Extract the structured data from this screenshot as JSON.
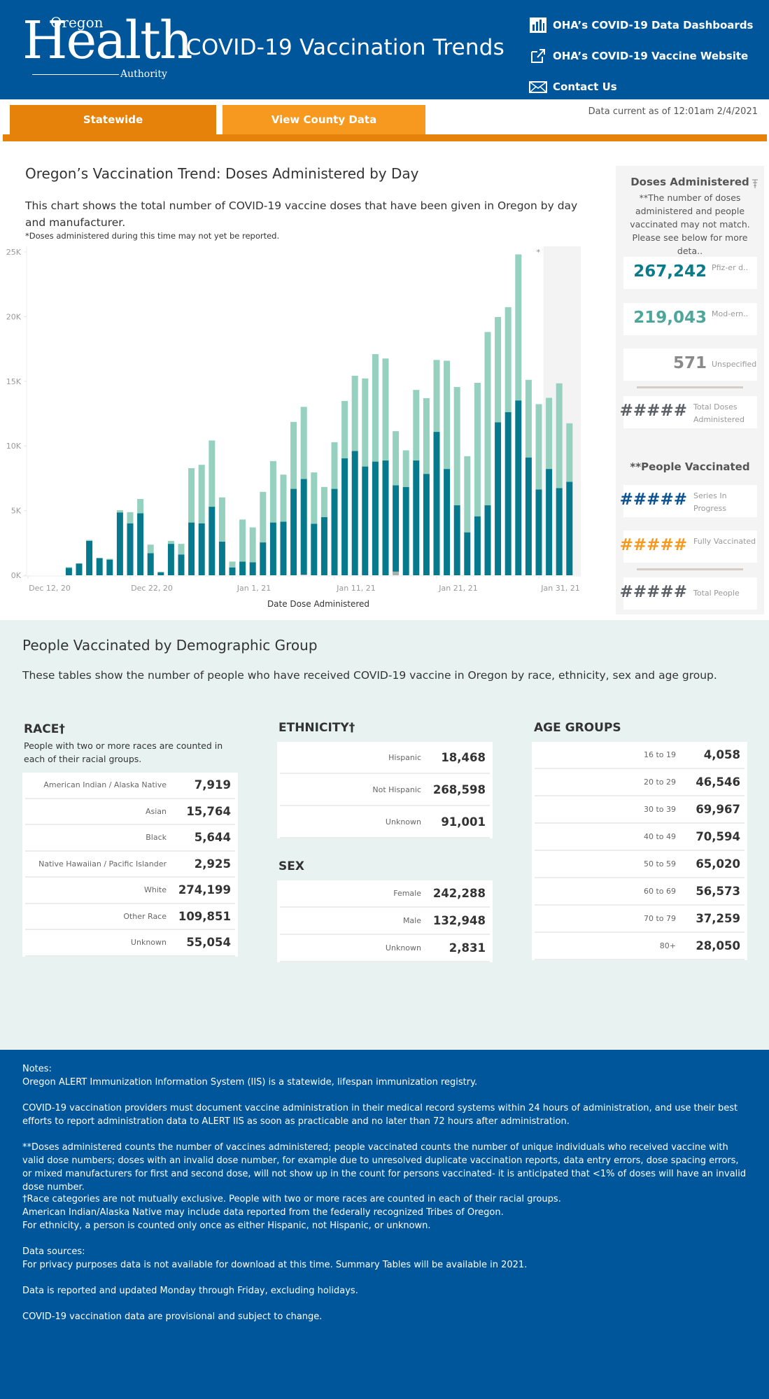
{
  "header": {
    "logo": {
      "big": "Health",
      "top": "Oregon",
      "bottom": "Authority"
    },
    "title": "COVID-19 Vaccination Trends",
    "links": [
      {
        "label": "OHA’s COVID-19 Data Dashboards",
        "icon": "bar-chart-icon"
      },
      {
        "label": "OHA’s COVID-19 Vaccine Website",
        "icon": "external-link-icon"
      },
      {
        "label": "Contact Us",
        "icon": "envelope-icon"
      }
    ]
  },
  "nav": {
    "tabs": [
      {
        "label": "Statewide",
        "active": true
      },
      {
        "label": "View County Data",
        "active": false
      }
    ],
    "data_current": "Data current as of 12:01am 2/4/2021"
  },
  "trend": {
    "title": "Oregon’s Vaccination Trend: Doses Administered by Day",
    "description": "This chart shows the total number of COVID-19 vaccine doses that have been given in Oregon by day and manufacturer.",
    "note": "*Doses administered during this time may not yet be reported.",
    "asterisk": "*"
  },
  "chart_data": {
    "type": "bar",
    "stacked": true,
    "title": "Oregon’s Vaccination Trend: Doses Administered by Day",
    "xlabel": "Date Dose Administered",
    "ylabel": "",
    "ylim": [
      0,
      25000
    ],
    "y_ticks": [
      0,
      5000,
      10000,
      15000,
      20000,
      25000
    ],
    "y_tick_labels": [
      "0K",
      "5K",
      "10K",
      "15K",
      "20K",
      "25K"
    ],
    "x_tick_labels": [
      "Dec 12, 20",
      "Dec 22, 20",
      "Jan 1, 21",
      "Jan 11, 21",
      "Jan 21, 21",
      "Jan 31, 21"
    ],
    "x_tick_dates": [
      "2020-12-12",
      "2020-12-22",
      "2021-01-01",
      "2021-01-11",
      "2021-01-21",
      "2021-01-31"
    ],
    "x_start": "2020-12-12",
    "x_end": "2021-02-03",
    "shaded_region_start": "2021-02-01",
    "shaded_region_note": "*",
    "grid": false,
    "categories": [
      "2020-12-16",
      "2020-12-17",
      "2020-12-18",
      "2020-12-19",
      "2020-12-20",
      "2020-12-21",
      "2020-12-22",
      "2020-12-23",
      "2020-12-24",
      "2020-12-25",
      "2020-12-26",
      "2020-12-27",
      "2020-12-28",
      "2020-12-29",
      "2020-12-30",
      "2020-12-31",
      "2021-01-01",
      "2021-01-02",
      "2021-01-03",
      "2021-01-04",
      "2021-01-05",
      "2021-01-06",
      "2021-01-07",
      "2021-01-08",
      "2021-01-09",
      "2021-01-10",
      "2021-01-11",
      "2021-01-12",
      "2021-01-13",
      "2021-01-14",
      "2021-01-15",
      "2021-01-16",
      "2021-01-17",
      "2021-01-18",
      "2021-01-19",
      "2021-01-20",
      "2021-01-21",
      "2021-01-22",
      "2021-01-23",
      "2021-01-24",
      "2021-01-25",
      "2021-01-26",
      "2021-01-27",
      "2021-01-28",
      "2021-01-29",
      "2021-01-30",
      "2021-01-31",
      "2021-02-01",
      "2021-02-02",
      "2021-02-03"
    ],
    "series": [
      {
        "name": "Pfizer",
        "color": "#067a8c",
        "values": [
          570,
          910,
          2660,
          1330,
          1210,
          4860,
          4020,
          4800,
          1710,
          230,
          2430,
          1610,
          4080,
          4020,
          5300,
          2600,
          610,
          1060,
          1010,
          2540,
          4080,
          4140,
          6680,
          7400,
          3990,
          4500,
          6680,
          9050,
          9610,
          8410,
          8790,
          8880,
          6680,
          6830,
          8880,
          7840,
          11090,
          8220,
          5410,
          3320,
          4560,
          5410,
          11830,
          12620,
          13520,
          9110,
          6640,
          8220,
          6740,
          7230
        ]
      },
      {
        "name": "Moderna",
        "color": "#96d0bf",
        "values": [
          60,
          0,
          70,
          0,
          60,
          170,
          860,
          1100,
          660,
          50,
          230,
          820,
          4200,
          4520,
          5120,
          3420,
          450,
          3250,
          2690,
          3910,
          4750,
          3640,
          5180,
          5570,
          3960,
          2330,
          3610,
          4430,
          5820,
          6810,
          8310,
          7880,
          4180,
          2830,
          5450,
          5850,
          5560,
          8370,
          9150,
          5890,
          10320,
          13400,
          8140,
          8110,
          11290,
          6000,
          6590,
          5500,
          8100,
          4520
        ]
      },
      {
        "name": "Unspecified",
        "color": "#a9b0ae",
        "values": [
          0,
          0,
          0,
          0,
          0,
          0,
          0,
          0,
          0,
          0,
          0,
          0,
          0,
          0,
          0,
          0,
          0,
          0,
          0,
          0,
          0,
          0,
          0,
          50,
          0,
          0,
          0,
          0,
          0,
          0,
          0,
          0,
          280,
          0,
          0,
          0,
          0,
          0,
          0,
          0,
          0,
          0,
          0,
          0,
          0,
          0,
          0,
          0,
          0,
          0
        ]
      }
    ]
  },
  "side_panel": {
    "doses_title": "Doses Administered",
    "doses_note": "**The number of doses administered and people vaccinated may not match. Please see below for more deta..",
    "kpis": [
      {
        "value": "267,242",
        "label": "Pfiz-er d..",
        "color": "#0b7a8b"
      },
      {
        "value": "219,043",
        "label": "Mod-ern..",
        "color": "#4da69a"
      },
      {
        "value": "571",
        "label": "Unspecified",
        "color": "#8a8a8a"
      },
      {
        "value": "#####",
        "label": "Total Doses Administered",
        "color": "#5b5f66"
      }
    ],
    "people_title": "**People Vaccinated",
    "people_kpis": [
      {
        "value": "#####",
        "label": "Series In Progress",
        "color": "#0b5394"
      },
      {
        "value": "#####",
        "label": "Fully Vaccinated",
        "color": "#f6991e"
      },
      {
        "value": "#####",
        "label": "Total People",
        "color": "#5b5f66"
      }
    ]
  },
  "demographics": {
    "title": "People Vaccinated by Demographic Group",
    "description": "These tables show the number of people who have received COVID-19 vaccine in Oregon by race, ethnicity, sex and age group.",
    "race": {
      "title": "RACE†",
      "subtitle": "People with two or more races are counted in each of their racial groups.",
      "rows": [
        {
          "label": "American Indian / Alaska Native",
          "value": "7,919"
        },
        {
          "label": "Asian",
          "value": "15,764"
        },
        {
          "label": "Black",
          "value": "5,644"
        },
        {
          "label": "Native Hawaiian / Pacific Islander",
          "value": "2,925"
        },
        {
          "label": "White",
          "value": "274,199"
        },
        {
          "label": "Other Race",
          "value": "109,851"
        },
        {
          "label": "Unknown",
          "value": "55,054"
        }
      ]
    },
    "ethnicity": {
      "title": "ETHNICITY†",
      "rows": [
        {
          "label": "Hispanic",
          "value": "18,468"
        },
        {
          "label": "Not Hispanic",
          "value": "268,598"
        },
        {
          "label": "Unknown",
          "value": "91,001"
        }
      ]
    },
    "sex": {
      "title": "SEX",
      "rows": [
        {
          "label": "Female",
          "value": "242,288"
        },
        {
          "label": "Male",
          "value": "132,948"
        },
        {
          "label": "Unknown",
          "value": "2,831"
        }
      ]
    },
    "age": {
      "title": "AGE GROUPS",
      "rows": [
        {
          "label": "16 to 19",
          "value": "4,058"
        },
        {
          "label": "20 to 29",
          "value": "46,546"
        },
        {
          "label": "30 to 39",
          "value": "69,967"
        },
        {
          "label": "40 to 49",
          "value": "70,594"
        },
        {
          "label": "50 to 59",
          "value": "65,020"
        },
        {
          "label": "60 to 69",
          "value": "56,573"
        },
        {
          "label": "70 to 79",
          "value": "37,259"
        },
        {
          "label": "80+",
          "value": "28,050"
        }
      ]
    }
  },
  "notes": {
    "lines": [
      "Notes:",
      "Oregon ALERT Immunization Information System (IIS) is a statewide, lifespan immunization registry.",
      "COVID-19 vaccination providers must document vaccine administration in their medical record systems within 24 hours of administration, and use their best efforts to report administration data to ALERT IIS as soon as practicable and no later than 72 hours after administration.",
      "**Doses administered counts the number of vaccines administered; people vaccinated counts the number of unique individuals who received vaccine with valid dose numbers; doses with an invalid dose number, for example due to unresolved duplicate vaccination reports, data entry errors, dose spacing errors, or mixed manufacturers for first and second dose, will not show up in the count for persons vaccinated- it is anticipated that <1% of doses will have an invalid dose number.",
      "†Race categories are not mutually exclusive. People with two or more races are counted in each of their racial groups.",
      "American Indian/Alaska Native may include data reported from the federally recognized Tribes of Oregon.",
      "For ethnicity, a person is counted only once as either Hispanic, not Hispanic, or unknown.",
      "Data sources:",
      "For privacy purposes data is not available for download at this time. Summary Tables will be available in 2021.",
      "Data is reported and updated Monday through Friday, excluding holidays.",
      "COVID-19 vaccination data are provisional and subject to change."
    ]
  }
}
